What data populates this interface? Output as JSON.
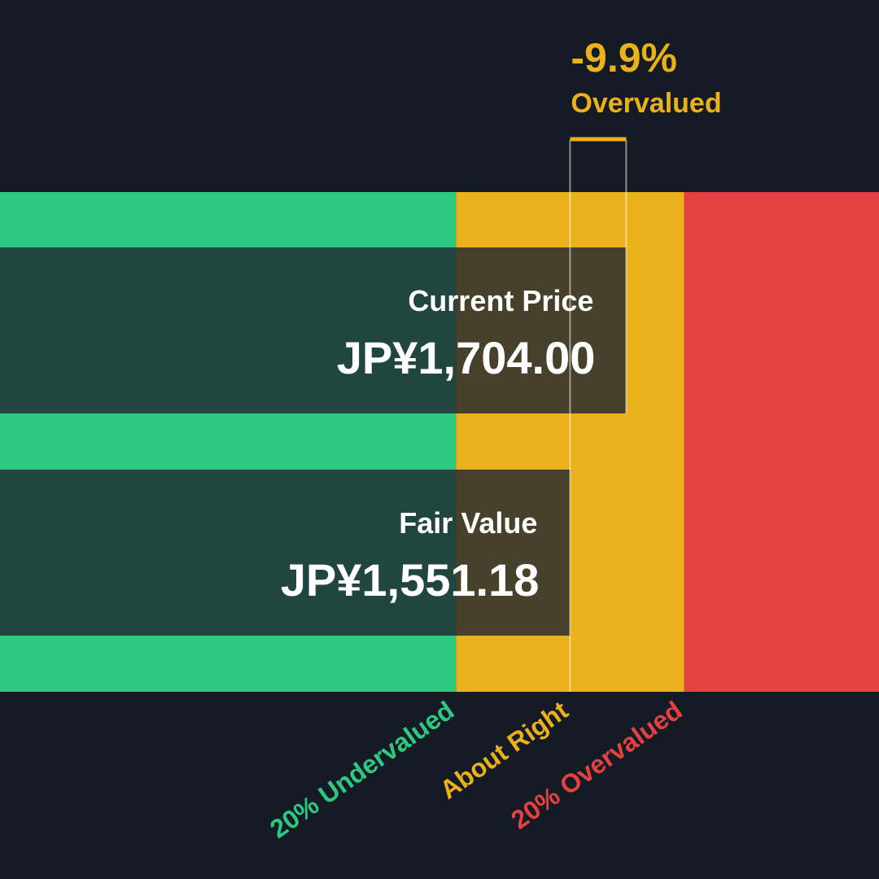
{
  "chart_data": {
    "type": "bar",
    "orientation": "horizontal",
    "currency_prefix": "JP¥",
    "bars": [
      {
        "name": "current-price",
        "label": "Current Price",
        "value": 1704.0,
        "value_text": "JP¥1,704.00"
      },
      {
        "name": "fair-value",
        "label": "Fair Value",
        "value": 1551.18,
        "value_text": "JP¥1,551.18"
      }
    ],
    "zones": [
      {
        "name": "undervalued",
        "label": "20% Undervalued",
        "from": 0,
        "to": 1240.94,
        "color": "#2ec981"
      },
      {
        "name": "about-right",
        "label": "About Right",
        "from": 1240.94,
        "to": 1861.42,
        "color": "#ebb11a"
      },
      {
        "name": "overvalued",
        "label": "20% Overvalued",
        "from": 1861.42,
        "to": 2391.91,
        "color": "#e54141"
      }
    ],
    "xlim": [
      0,
      2391.91
    ],
    "zone_axis_labels": [
      {
        "text": "20% Undervalued",
        "at": 1240.94,
        "color": "#2ec981"
      },
      {
        "text": "About Right",
        "at": 1551.18,
        "color": "#ebb11a"
      },
      {
        "text": "20% Overvalued",
        "at": 1861.42,
        "color": "#e54141"
      }
    ],
    "annotation": {
      "percent_text": "-9.9%",
      "status_text": "Overvalued",
      "color": "#ebb11a",
      "from_value": 1551.18,
      "to_value": 1704.0
    }
  },
  "colors": {
    "background": "#151b24",
    "bar_overlay": "#1e2630",
    "text": "#ffffff"
  }
}
